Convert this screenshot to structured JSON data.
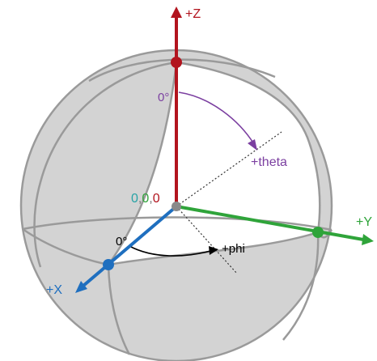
{
  "axes": {
    "z": {
      "label": "+Z",
      "color": "#b2141e"
    },
    "y": {
      "label": "+Y",
      "color": "#2fa43a"
    },
    "x": {
      "label": "+X",
      "color": "#1f6fbf"
    }
  },
  "origin": {
    "parts": [
      "0",
      ",",
      "0",
      ",",
      "0"
    ],
    "part_colors": [
      "#27a3a6",
      "#777777",
      "#2fa43a",
      "#777777",
      "#b2141e"
    ],
    "point_color": "#8a8a8a"
  },
  "theta": {
    "zero_label": "0°",
    "label": "+theta",
    "color": "#7b3fa0"
  },
  "phi": {
    "zero_label": "0°",
    "label": "+phi",
    "color": "#000000"
  },
  "sphere": {
    "fill": "#d3d3d3",
    "cut_fill": "#ffffff",
    "line_color": "#9a9a9a"
  }
}
